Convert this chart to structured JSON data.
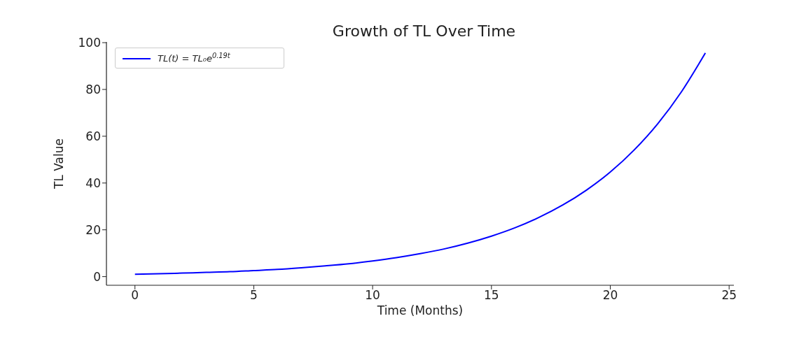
{
  "chart_data": {
    "type": "line",
    "title": "Growth of TL Over Time",
    "xlabel": "Time (Months)",
    "ylabel": "TL Value",
    "x": [
      0,
      1,
      2,
      3,
      4,
      5,
      6,
      7,
      8,
      9,
      10,
      11,
      12,
      13,
      14,
      15,
      16,
      17,
      18,
      19,
      20,
      21,
      22,
      23,
      24
    ],
    "series": [
      {
        "name": "TL(t) = TL₀e$^{0.19t}$",
        "color": "#0000ff",
        "values": [
          1.0,
          1.2,
          1.5,
          1.8,
          2.1,
          2.6,
          3.1,
          3.8,
          4.6,
          5.5,
          6.7,
          8.1,
          9.8,
          11.8,
          14.3,
          17.3,
          20.9,
          25.3,
          30.6,
          37.0,
          44.7,
          54.1,
          65.4,
          79.1,
          95.6
        ]
      }
    ],
    "xlim": [
      -1.2,
      25.2
    ],
    "ylim": [
      -3.7,
      100.3
    ],
    "xticks": [
      0,
      5,
      10,
      15,
      20,
      25
    ],
    "yticks": [
      0,
      20,
      40,
      60,
      80,
      100
    ],
    "grid": false,
    "legend": "top left",
    "marker": "none",
    "line_style": "solid"
  }
}
